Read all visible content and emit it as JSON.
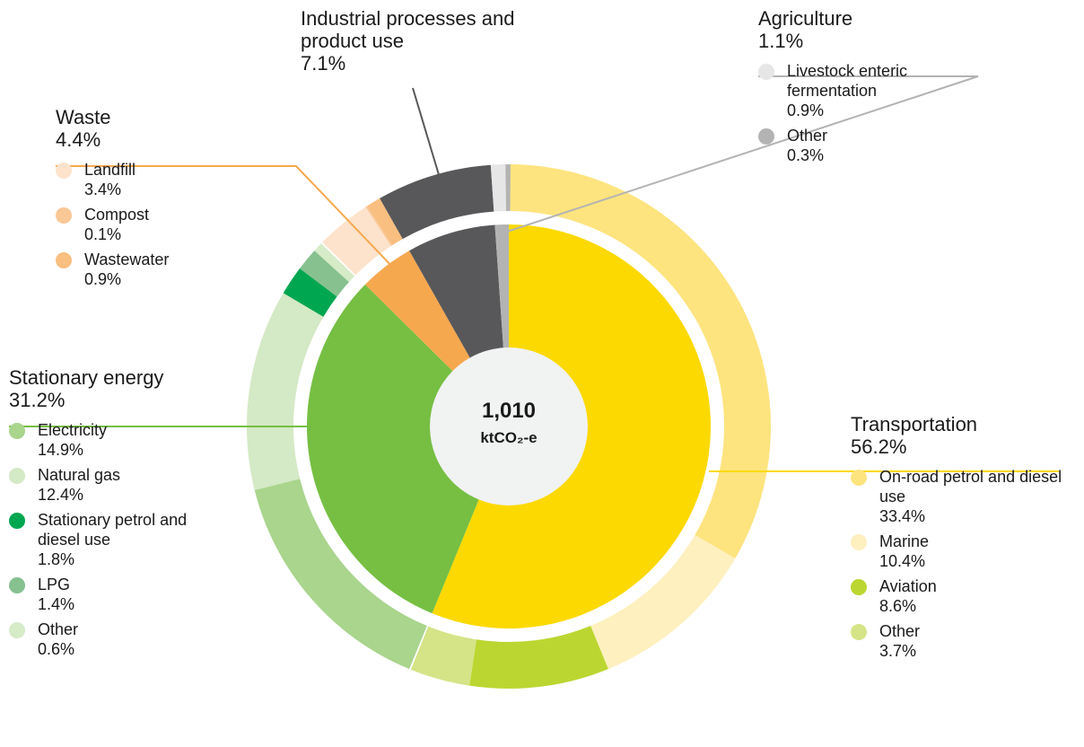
{
  "chart_data": {
    "type": "sunburst",
    "total": {
      "value": 1010,
      "label": "1,010"
    },
    "unit": "ktCO₂-e",
    "categories": [
      {
        "name": "Transportation",
        "value": 56.2,
        "value_label": "56.2%",
        "color": "#fcd900",
        "subs": [
          {
            "name": "On-road petrol and diesel use",
            "value": 33.4,
            "value_label": "33.4%",
            "color": "#fde47f"
          },
          {
            "name": "Marine",
            "value": 10.4,
            "value_label": "10.4%",
            "color": "#fef0bf"
          },
          {
            "name": "Aviation",
            "value": 8.6,
            "value_label": "8.6%",
            "color": "#bcd631"
          },
          {
            "name": "Other",
            "value": 3.7,
            "value_label": "3.7%",
            "color": "#d5e487"
          }
        ]
      },
      {
        "name": "Stationary energy",
        "value": 31.2,
        "value_label": "31.2%",
        "color": "#76bf43",
        "subs": [
          {
            "name": "Electricity",
            "value": 14.9,
            "value_label": "14.9%",
            "color": "#a9d58d"
          },
          {
            "name": "Natural gas",
            "value": 12.4,
            "value_label": "12.4%",
            "color": "#d4e9c5"
          },
          {
            "name": "Stationary petrol and diesel use",
            "value": 1.8,
            "value_label": "1.8%",
            "color": "#00a650"
          },
          {
            "name": "LPG",
            "value": 1.4,
            "value_label": "1.4%",
            "color": "#86c18f"
          },
          {
            "name": "Other",
            "value": 0.6,
            "value_label": "0.6%",
            "color": "#d6ebc8"
          }
        ]
      },
      {
        "name": "Waste",
        "value": 4.4,
        "value_label": "4.4%",
        "color": "#f6a84f",
        "subs": [
          {
            "name": "Landfill",
            "value": 3.4,
            "value_label": "3.4%",
            "color": "#fde3cc"
          },
          {
            "name": "Compost",
            "value": 0.1,
            "value_label": "0.1%",
            "color": "#fbc796"
          },
          {
            "name": "Wastewater",
            "value": 0.9,
            "value_label": "0.9%",
            "color": "#f9bf80"
          }
        ]
      },
      {
        "name": "Industrial processes and product use",
        "value": 7.1,
        "value_label": "7.1%",
        "color": "#58585a",
        "subs": []
      },
      {
        "name": "Agriculture",
        "value": 1.1,
        "value_label": "1.1%",
        "color": "#b3b3b3",
        "subs": [
          {
            "name": "Livestock enteric fermentation",
            "value": 0.9,
            "value_label": "0.9%",
            "color": "#e6e6e6"
          },
          {
            "name": "Other",
            "value": 0.3,
            "value_label": "0.3%",
            "color": "#b3b3b3"
          }
        ]
      }
    ]
  }
}
